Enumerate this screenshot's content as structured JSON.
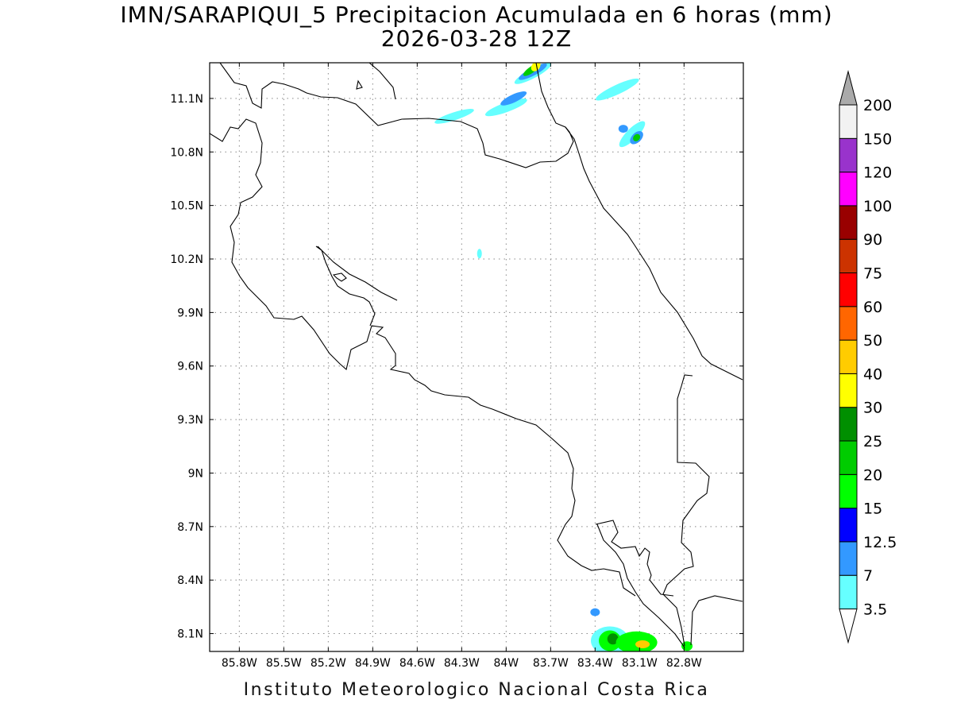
{
  "title": "IMN/SARAPIQUI_5 Precipitacion Acumulada en 6 horas (mm)",
  "subtitle": "2026-03-28 12Z",
  "footer": "Instituto Meteorologico Nacional Costa Rica",
  "map": {
    "lon_range": [
      -86.0,
      -82.4
    ],
    "lat_range": [
      8.0,
      11.3
    ],
    "lat_ticks": [
      {
        "value": 11.1,
        "label": "11.1N"
      },
      {
        "value": 10.8,
        "label": "10.8N"
      },
      {
        "value": 10.5,
        "label": "10.5N"
      },
      {
        "value": 10.2,
        "label": "10.2N"
      },
      {
        "value": 9.9,
        "label": "9.9N"
      },
      {
        "value": 9.6,
        "label": "9.6N"
      },
      {
        "value": 9.3,
        "label": "9.3N"
      },
      {
        "value": 9.0,
        "label": "9N"
      },
      {
        "value": 8.7,
        "label": "8.7N"
      },
      {
        "value": 8.4,
        "label": "8.4N"
      },
      {
        "value": 8.1,
        "label": "8.1N"
      }
    ],
    "lon_ticks": [
      {
        "value": -85.8,
        "label": "85.8W"
      },
      {
        "value": -85.5,
        "label": "85.5W"
      },
      {
        "value": -85.2,
        "label": "85.2W"
      },
      {
        "value": -84.9,
        "label": "84.9W"
      },
      {
        "value": -84.6,
        "label": "84.6W"
      },
      {
        "value": -84.3,
        "label": "84.3W"
      },
      {
        "value": -84.0,
        "label": "84W"
      },
      {
        "value": -83.7,
        "label": "83.7W"
      },
      {
        "value": -83.4,
        "label": "83.4W"
      },
      {
        "value": -83.1,
        "label": "83.1W"
      },
      {
        "value": -82.8,
        "label": "82.8W"
      }
    ],
    "grid": "dotted"
  },
  "colorbar": {
    "labels": [
      "3.5",
      "7",
      "12.5",
      "15",
      "20",
      "25",
      "30",
      "40",
      "50",
      "60",
      "75",
      "90",
      "100",
      "120",
      "150",
      "200"
    ],
    "colors": [
      "#ffffff",
      "#66ffff",
      "#3399ff",
      "#0000ff",
      "#00ff00",
      "#00cc00",
      "#008f00",
      "#ffff00",
      "#ffcc00",
      "#ff6600",
      "#ff0000",
      "#cc3300",
      "#990000",
      "#ff00ff",
      "#9933cc",
      "#f2f2f2",
      "#aaaaaa"
    ]
  },
  "precip_areas": [
    {
      "lon": -83.82,
      "lat": 11.24,
      "category": 1
    },
    {
      "lon": -83.82,
      "lat": 11.25,
      "category": 2
    },
    {
      "lon": -83.83,
      "lat": 11.26,
      "category": 5
    },
    {
      "lon": -83.8,
      "lat": 11.28,
      "category": 7
    },
    {
      "lon": -84.0,
      "lat": 11.05,
      "category": 1
    },
    {
      "lon": -83.95,
      "lat": 11.1,
      "category": 2
    },
    {
      "lon": -84.35,
      "lat": 11.0,
      "category": 1
    },
    {
      "lon": -83.25,
      "lat": 11.15,
      "category": 1
    },
    {
      "lon": -83.15,
      "lat": 10.9,
      "category": 1
    },
    {
      "lon": -83.12,
      "lat": 10.88,
      "category": 2
    },
    {
      "lon": -83.12,
      "lat": 10.88,
      "category": 5
    },
    {
      "lon": -83.21,
      "lat": 10.93,
      "category": 2
    },
    {
      "lon": -83.4,
      "lat": 8.22,
      "category": 2
    },
    {
      "lon": -83.3,
      "lat": 8.06,
      "category": 1
    },
    {
      "lon": -83.3,
      "lat": 8.06,
      "category": 4
    },
    {
      "lon": -83.28,
      "lat": 8.07,
      "category": 6
    },
    {
      "lon": -83.12,
      "lat": 8.05,
      "category": 4
    },
    {
      "lon": -83.08,
      "lat": 8.04,
      "category": 8
    },
    {
      "lon": -82.78,
      "lat": 8.03,
      "category": 4
    },
    {
      "lon": -84.18,
      "lat": 10.23,
      "category": 1
    }
  ]
}
